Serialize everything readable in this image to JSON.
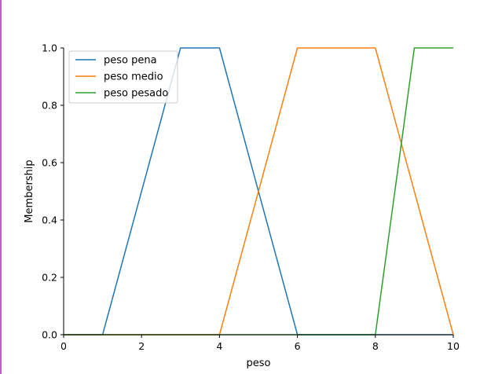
{
  "chart_data": {
    "type": "line",
    "title": "",
    "xlabel": "peso",
    "ylabel": "Membership",
    "xlim": [
      0,
      10
    ],
    "ylim": [
      0,
      1.0
    ],
    "xticks": [
      "0",
      "2",
      "4",
      "6",
      "8",
      "10"
    ],
    "yticks": [
      "0.0",
      "0.2",
      "0.4",
      "0.6",
      "0.8",
      "1.0"
    ],
    "grid": false,
    "legend": "top-left",
    "series": [
      {
        "name": "peso pena",
        "color": "#1f77b4",
        "x": [
          0,
          1,
          3,
          4,
          6,
          10
        ],
        "y": [
          0,
          0,
          1,
          1,
          0,
          0
        ]
      },
      {
        "name": "peso medio",
        "color": "#ff7f0e",
        "x": [
          0,
          4,
          6,
          8,
          10
        ],
        "y": [
          0,
          0,
          1,
          1,
          0
        ]
      },
      {
        "name": "peso pesado",
        "color": "#2ca02c",
        "x": [
          0,
          8,
          9,
          10
        ],
        "y": [
          0,
          0,
          1,
          1
        ]
      }
    ]
  }
}
